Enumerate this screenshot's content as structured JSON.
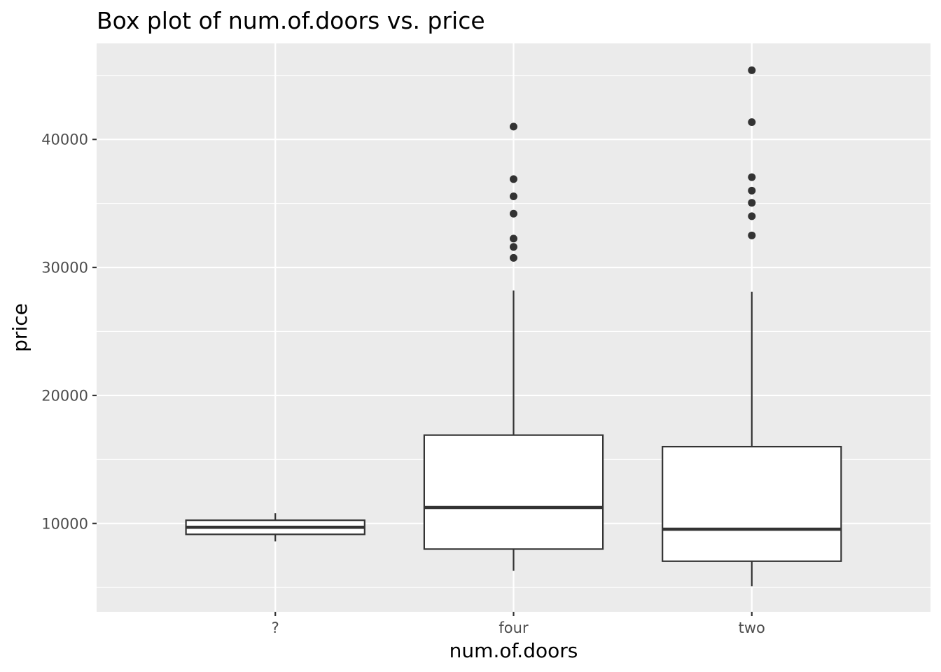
{
  "chart_data": {
    "type": "boxplot",
    "title": "Box plot of num.of.doors vs. price",
    "xlabel": "num.of.doors",
    "ylabel": "price",
    "categories": [
      "?",
      "four",
      "two"
    ],
    "ylim": [
      3100,
      47500
    ],
    "yticks": [
      10000,
      20000,
      30000,
      40000
    ],
    "ytick_labels": [
      "10000",
      "20000",
      "30000",
      "40000"
    ],
    "grid": true,
    "legend": "none",
    "colors": {
      "panel": "#ebebeb",
      "grid": "#ffffff",
      "box_fill": "#ffffff",
      "box_line": "#333333",
      "outlier": "#333333"
    },
    "boxes": [
      {
        "category": "?",
        "whisker_low": 8600,
        "q1": 9150,
        "median": 9700,
        "q3": 10250,
        "whisker_high": 10800,
        "outliers": []
      },
      {
        "category": "four",
        "whisker_low": 6300,
        "q1": 8000,
        "median": 11250,
        "q3": 16900,
        "whisker_high": 28200,
        "outliers": [
          30750,
          31600,
          32250,
          34200,
          35550,
          36900,
          41000
        ]
      },
      {
        "category": "two",
        "whisker_low": 5100,
        "q1": 7050,
        "median": 9550,
        "q3": 16000,
        "whisker_high": 28100,
        "outliers": [
          32500,
          34000,
          35050,
          36000,
          37050,
          41350,
          45400
        ]
      }
    ]
  }
}
